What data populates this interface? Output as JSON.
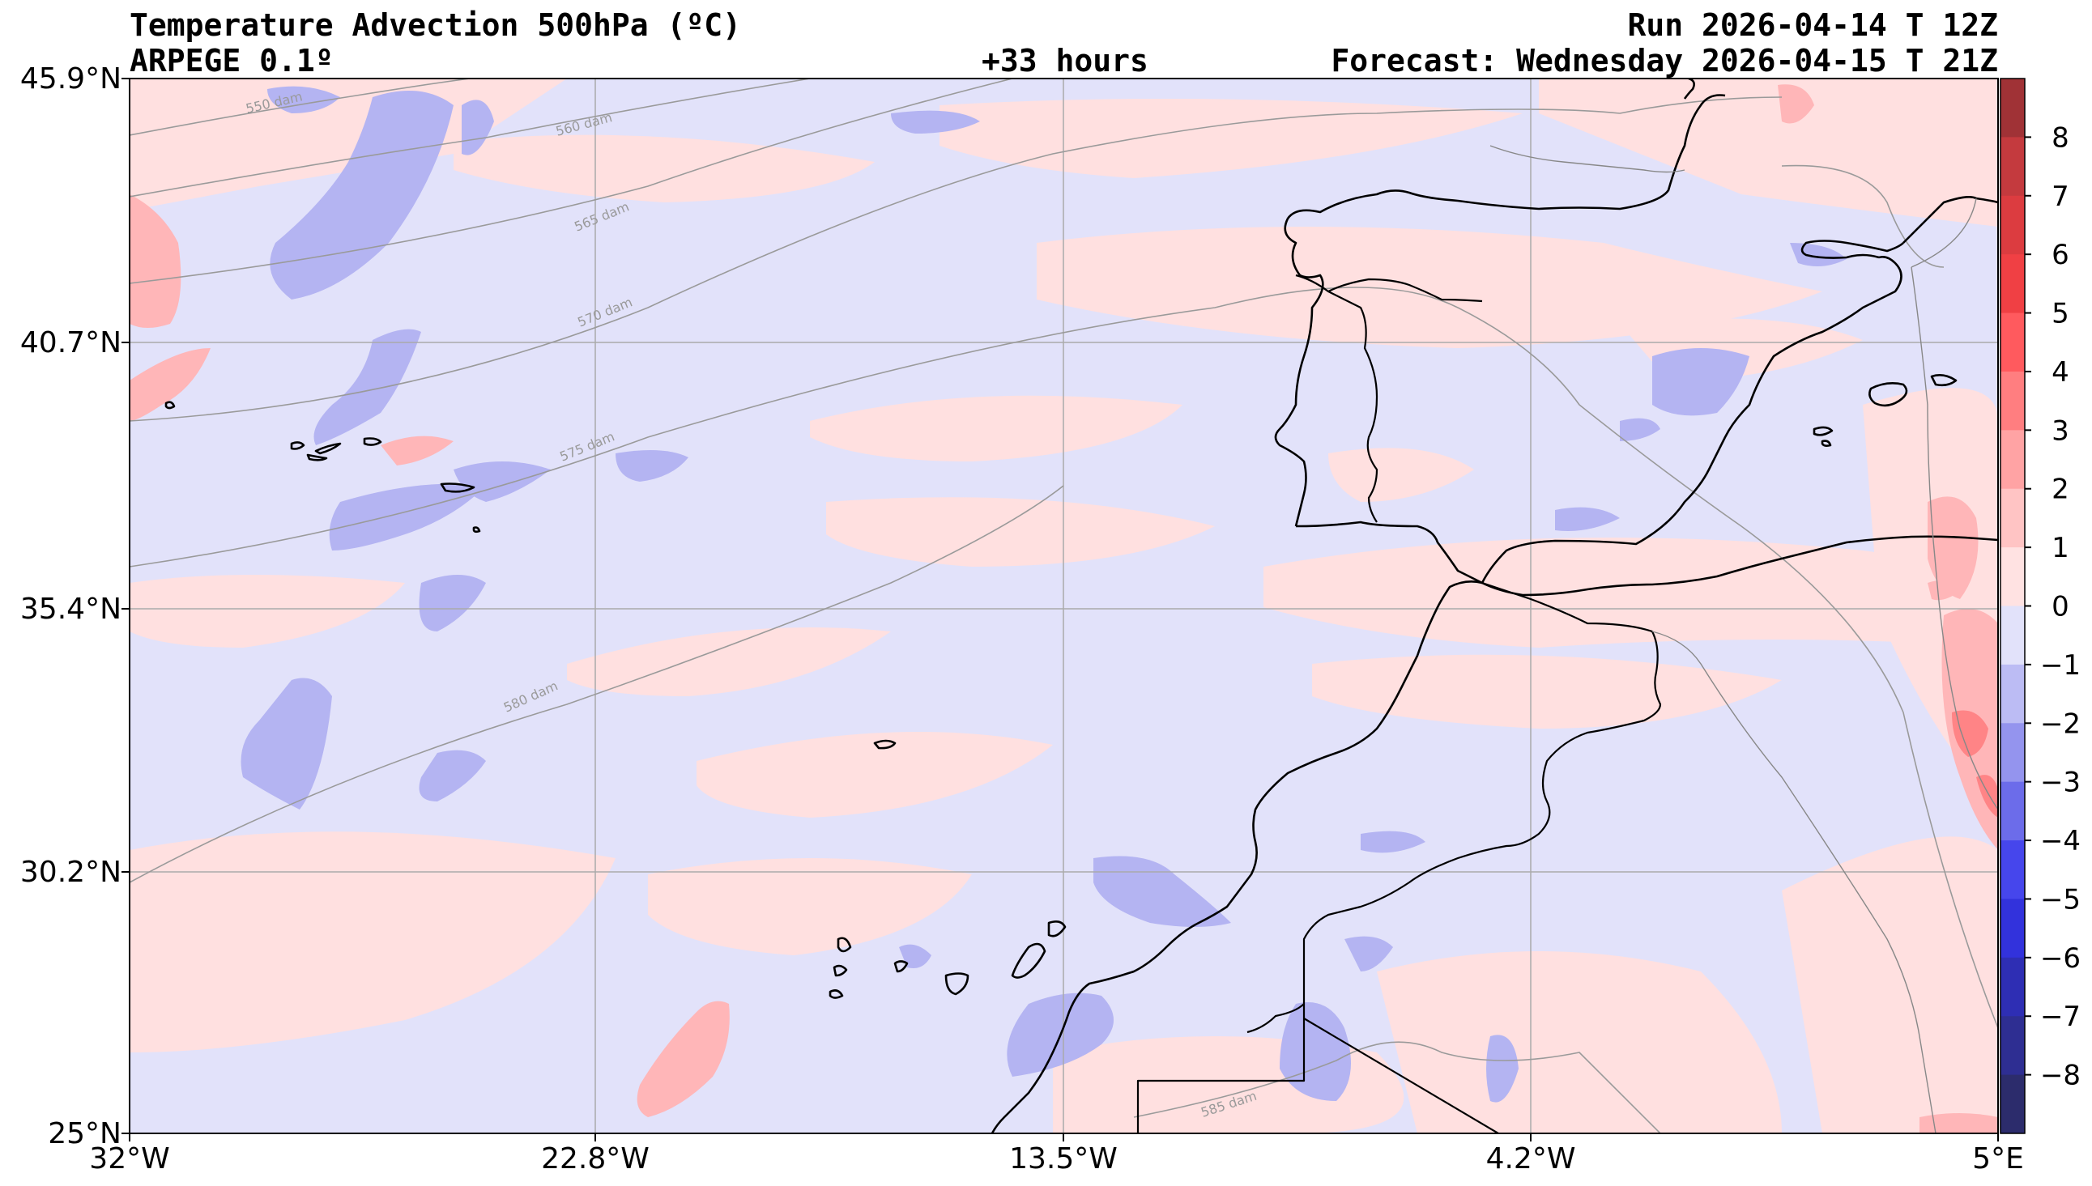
{
  "header": {
    "title": "Temperature Advection  500hPa (ºC)",
    "model": "ARPEGE 0.1º",
    "lead": "+33 hours",
    "run": "Run 2026-04-14 T 12Z",
    "forecast": "Forecast: Wednesday 2026-04-15 T 21Z"
  },
  "axes": {
    "lat_labels": [
      "45.9°N",
      "40.7°N",
      "35.4°N",
      "30.2°N",
      "25°N"
    ],
    "lon_labels": [
      "32°W",
      "22.8°W",
      "13.5°W",
      "4.2°W",
      "5°E"
    ]
  },
  "contours": {
    "color": "#9a9a9a",
    "labels": [
      "550 dam",
      "560 dam",
      "565 dam",
      "570 dam",
      "575 dam",
      "580 dam",
      "585 dam"
    ]
  },
  "colorbar": {
    "ticks": [
      "8",
      "7",
      "6",
      "5",
      "4",
      "3",
      "2",
      "1",
      "0",
      "−1",
      "−2",
      "−3",
      "−4",
      "−5",
      "−6",
      "−7",
      "−8"
    ],
    "colors": [
      "#a03236",
      "#c43a3e",
      "#dc3c40",
      "#f04044",
      "#ff5a5e",
      "#ff7e80",
      "#ffa3a4",
      "#ffc4c4",
      "#ffe2e2",
      "#e2e2fa",
      "#bcbcf4",
      "#9494ee",
      "#6c6cea",
      "#4646ec",
      "#3232dc",
      "#2e2eb4",
      "#2e2e92",
      "#2c2c6c"
    ]
  },
  "map_colors": {
    "neutral": "#e2e2fa",
    "warm_light": "#ffe0e0",
    "warm": "#ffb6b8",
    "warm_strong": "#ff8486",
    "cool": "#b4b4f2",
    "coast": "#000000"
  }
}
